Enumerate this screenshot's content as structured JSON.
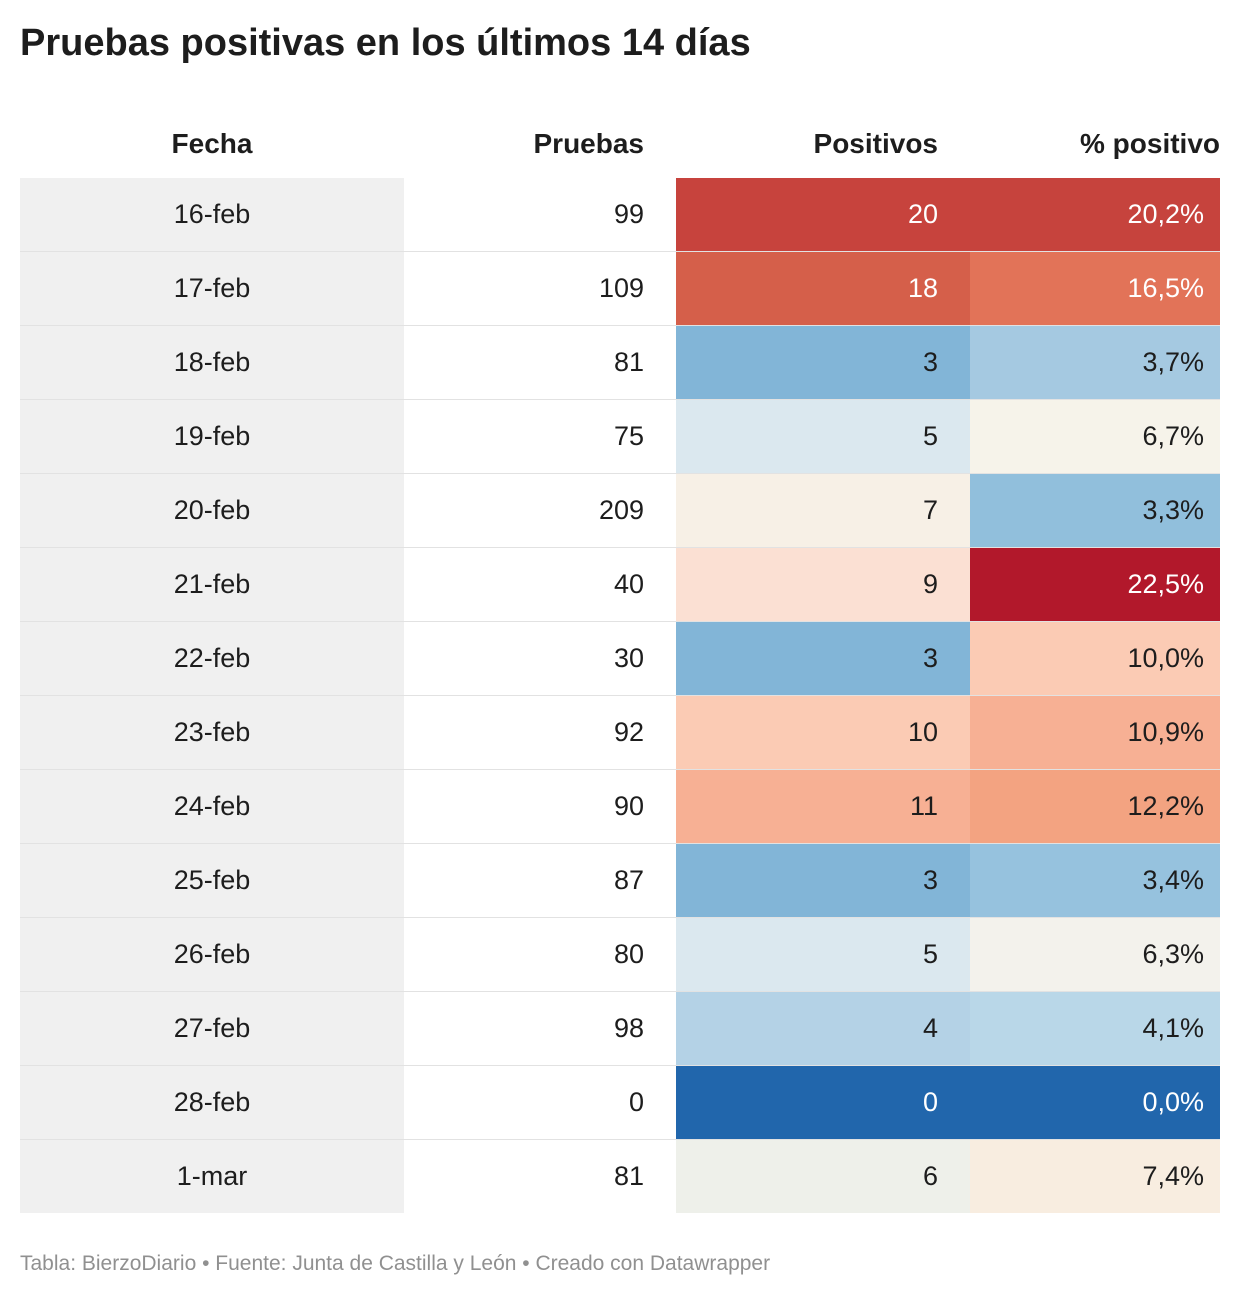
{
  "title": "Pruebas positivas en los últimos 14 días",
  "footer": "Tabla: BierzoDiario • Fuente: Junta de Castilla y León • Creado con Datawrapper",
  "chart_data": {
    "type": "table",
    "title": "Pruebas positivas en los últimos 14 días",
    "columns": [
      "Fecha",
      "Pruebas",
      "Positivos",
      "% positivo"
    ],
    "rows": [
      {
        "fecha": "16-feb",
        "pruebas": "99",
        "positivos": "20",
        "pct": "20,2%",
        "pos_color": "#c7433d",
        "pct_color": "#c6433d"
      },
      {
        "fecha": "17-feb",
        "pruebas": "109",
        "positivos": "18",
        "pct": "16,5%",
        "pos_color": "#d55f4a",
        "pct_color": "#e27358"
      },
      {
        "fecha": "18-feb",
        "pruebas": "81",
        "positivos": "3",
        "pct": "3,7%",
        "pos_color": "#82b5d7",
        "pct_color": "#a5c9e1"
      },
      {
        "fecha": "19-feb",
        "pruebas": "75",
        "positivos": "5",
        "pct": "6,7%",
        "pos_color": "#dbe8ef",
        "pct_color": "#f6f3ea"
      },
      {
        "fecha": "20-feb",
        "pruebas": "209",
        "positivos": "7",
        "pct": "3,3%",
        "pos_color": "#f7f0e6",
        "pct_color": "#91bfdc"
      },
      {
        "fecha": "21-feb",
        "pruebas": "40",
        "positivos": "9",
        "pct": "22,5%",
        "pos_color": "#fbe0d3",
        "pct_color": "#b2182b"
      },
      {
        "fecha": "22-feb",
        "pruebas": "30",
        "positivos": "3",
        "pct": "10,0%",
        "pos_color": "#82b5d7",
        "pct_color": "#fbcbb4"
      },
      {
        "fecha": "23-feb",
        "pruebas": "92",
        "positivos": "10",
        "pct": "10,9%",
        "pos_color": "#fbcbb4",
        "pct_color": "#f7b094"
      },
      {
        "fecha": "24-feb",
        "pruebas": "90",
        "positivos": "11",
        "pct": "12,2%",
        "pos_color": "#f7b094",
        "pct_color": "#f3a381"
      },
      {
        "fecha": "25-feb",
        "pruebas": "87",
        "positivos": "3",
        "pct": "3,4%",
        "pos_color": "#82b5d7",
        "pct_color": "#96c2de"
      },
      {
        "fecha": "26-feb",
        "pruebas": "80",
        "positivos": "5",
        "pct": "6,3%",
        "pos_color": "#dbe8ef",
        "pct_color": "#f3f2ec"
      },
      {
        "fecha": "27-feb",
        "pruebas": "98",
        "positivos": "4",
        "pct": "4,1%",
        "pos_color": "#b4d2e6",
        "pct_color": "#b9d7e8"
      },
      {
        "fecha": "28-feb",
        "pruebas": "0",
        "positivos": "0",
        "pct": "0,0%",
        "pos_color": "#2166ac",
        "pct_color": "#2166ac"
      },
      {
        "fecha": "1-mar",
        "pruebas": "81",
        "positivos": "6",
        "pct": "7,4%",
        "pos_color": "#eef0ea",
        "pct_color": "#f8ede0"
      }
    ]
  }
}
